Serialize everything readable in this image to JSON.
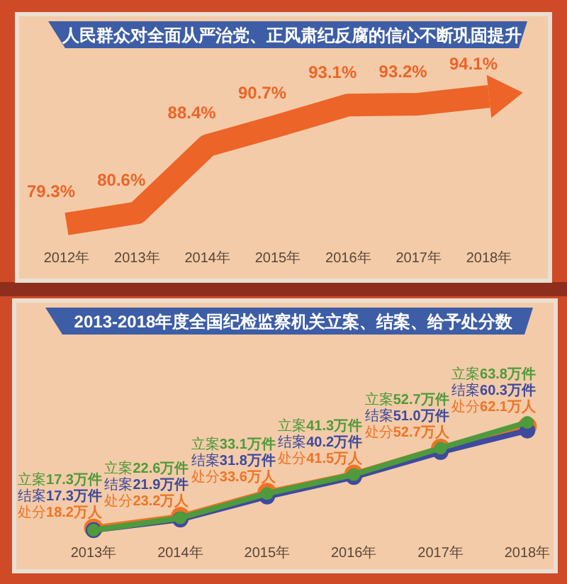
{
  "chart_data": [
    {
      "type": "line",
      "title": "人民群众对全面从严治党、正风肃纪反腐的信心不断巩固提升",
      "categories": [
        "2012年",
        "2013年",
        "2014年",
        "2015年",
        "2016年",
        "2017年",
        "2018年"
      ],
      "values": [
        79.3,
        80.6,
        88.4,
        90.7,
        93.1,
        93.2,
        94.1
      ],
      "value_labels": [
        "79.3%",
        "80.6%",
        "88.4%",
        "90.7%",
        "93.1%",
        "93.2%",
        "94.1%"
      ],
      "color": "#ec6428"
    },
    {
      "type": "line",
      "title": "2013-2018年度全国纪检监察机关立案、结案、给予处分数",
      "categories": [
        "2013年",
        "2014年",
        "2015年",
        "2016年",
        "2017年",
        "2018年"
      ],
      "marker": "circle",
      "series": [
        {
          "name": "立案",
          "color": "#4f9a3c",
          "values": [
            17.3,
            22.6,
            33.1,
            41.3,
            52.7,
            63.8
          ],
          "value_labels": [
            "17.3万件",
            "22.6万件",
            "33.1万件",
            "41.3万件",
            "52.7万件",
            "63.8万件"
          ]
        },
        {
          "name": "结案",
          "color": "#3e4a9e",
          "values": [
            17.3,
            21.9,
            31.8,
            40.2,
            51.0,
            60.3
          ],
          "value_labels": [
            "17.3万件",
            "21.9万件",
            "31.8万件",
            "40.2万件",
            "51.0万件",
            "60.3万件"
          ]
        },
        {
          "name": "处分",
          "color": "#ef7326",
          "values": [
            18.2,
            23.2,
            33.6,
            41.5,
            52.7,
            62.1
          ],
          "value_labels": [
            "18.2万人",
            "23.2万人",
            "33.6万人",
            "41.5万人",
            "52.7万人",
            "62.1万人"
          ]
        }
      ]
    }
  ]
}
